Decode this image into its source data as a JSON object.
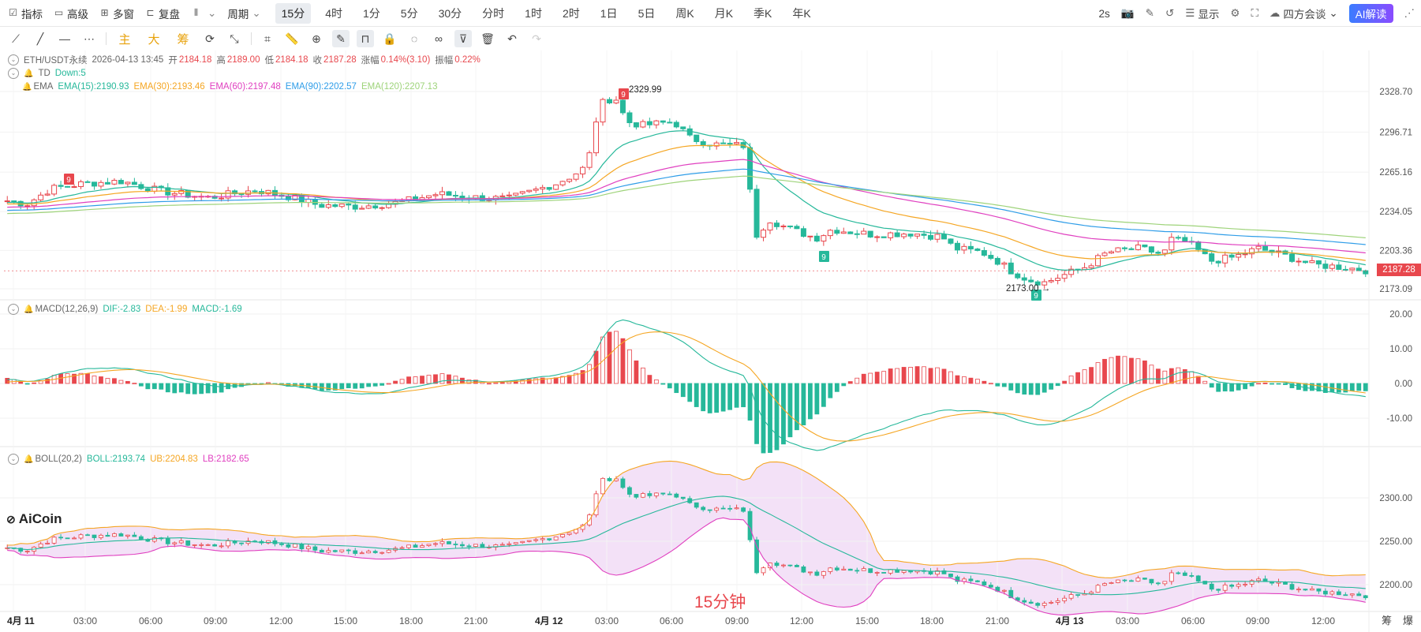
{
  "topbar": {
    "left_tools": [
      {
        "icon": "indicator-icon",
        "label": "指标"
      },
      {
        "icon": "advanced-icon",
        "label": "高级"
      },
      {
        "icon": "multiwindow-icon",
        "label": "多窗"
      },
      {
        "icon": "replay-icon",
        "label": "复盘"
      },
      {
        "icon": "chart-type-icon",
        "label": ""
      },
      {
        "icon": "chevron-down-icon",
        "label": "周期"
      }
    ],
    "periods": [
      "15分",
      "4时",
      "1分",
      "5分",
      "30分",
      "分时",
      "1时",
      "2时",
      "1日",
      "5日",
      "周K",
      "月K",
      "季K",
      "年K"
    ],
    "active_period": "15分",
    "right_tools": [
      {
        "icon": "refresh-rate",
        "label": "2s"
      },
      {
        "icon": "camera-icon",
        "label": ""
      },
      {
        "icon": "pencil-icon",
        "label": ""
      },
      {
        "icon": "undo-layout-icon",
        "label": ""
      },
      {
        "icon": "list-icon",
        "label": "显示"
      },
      {
        "icon": "gear-icon",
        "label": ""
      },
      {
        "icon": "fullscreen-icon",
        "label": ""
      },
      {
        "icon": "cloud-icon",
        "label": "四方会谈"
      },
      {
        "icon": "ai-icon",
        "label": "AI解读"
      },
      {
        "icon": "share-icon",
        "label": ""
      }
    ]
  },
  "drawing_tools": {
    "gold_labels": [
      "主",
      "大",
      "筹"
    ]
  },
  "legend": {
    "main": {
      "symbol": "ETH/USDT永续",
      "time": "2026-04-13 13:45",
      "open_label": "开",
      "open": "2184.18",
      "high_label": "高",
      "high": "2189.00",
      "low_label": "低",
      "low": "2184.18",
      "close_label": "收",
      "close": "2187.28",
      "change_label": "涨幅",
      "change": "0.14%(3.10)",
      "amp_label": "振幅",
      "amp": "0.22%"
    },
    "td": {
      "name": "TD",
      "value": "Down:5"
    },
    "ema": {
      "name": "EMA",
      "items": [
        {
          "label": "EMA(15):2190.93",
          "color": "#26b89a"
        },
        {
          "label": "EMA(30):2193.46",
          "color": "#f5a623"
        },
        {
          "label": "EMA(60):2197.48",
          "color": "#e040c0"
        },
        {
          "label": "EMA(90):2202.57",
          "color": "#2f9de8"
        },
        {
          "label": "EMA(120):2207.13",
          "color": "#9ed37a"
        }
      ]
    },
    "macd": {
      "name": "MACD(12,26,9)",
      "items": [
        {
          "label": "DIF:-2.83",
          "color": "#26b89a"
        },
        {
          "label": "DEA:-1.99",
          "color": "#f5a623"
        },
        {
          "label": "MACD:-1.69",
          "color": "#26b89a"
        }
      ]
    },
    "boll": {
      "name": "BOLL(20,2)",
      "items": [
        {
          "label": "BOLL:2193.74",
          "color": "#26b89a"
        },
        {
          "label": "UB:2204.83",
          "color": "#f5a623"
        },
        {
          "label": "LB:2182.65",
          "color": "#e040c0"
        }
      ]
    }
  },
  "axes": {
    "main_ticks": [
      "2328.70",
      "2296.71",
      "2265.16",
      "2234.05",
      "2203.36",
      "2173.09"
    ],
    "macd_ticks": [
      "20.00",
      "10.00",
      "0.00",
      "-10.00"
    ],
    "boll_ticks": [
      "2300.00",
      "2250.00",
      "2200.00"
    ],
    "time_ticks": [
      "4月 11",
      "03:00",
      "06:00",
      "09:00",
      "12:00",
      "15:00",
      "18:00",
      "21:00",
      "4月 12",
      "03:00",
      "06:00",
      "09:00",
      "12:00",
      "15:00",
      "18:00",
      "21:00",
      "4月 13",
      "03:00",
      "06:00",
      "09:00",
      "12:00"
    ]
  },
  "annotations": {
    "high_marker": "2329.99",
    "low_marker": "2173.00",
    "td_markers": [
      "9",
      "9",
      "9",
      "9"
    ],
    "last_price": "2187.28"
  },
  "watermark": "AiCoin",
  "period_watermark": "15分钟",
  "corner_labels": [
    "筹",
    "爆"
  ],
  "colors": {
    "up": "#e8474d",
    "down": "#26b89a",
    "accent": "#2f7cf6"
  }
}
